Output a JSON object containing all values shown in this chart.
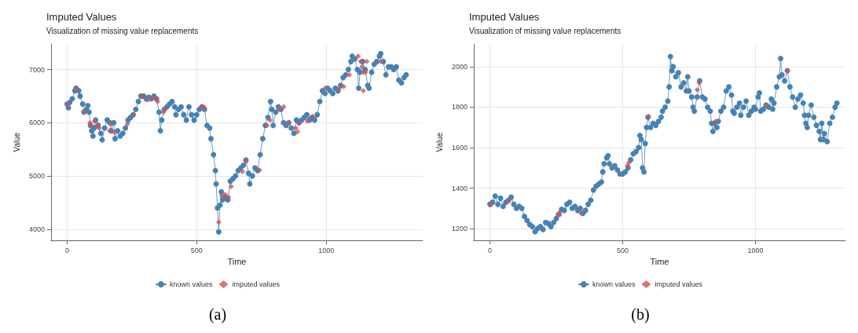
{
  "chart_data": [
    {
      "type": "line",
      "title": "Imputed Values",
      "subtitle": "Visualization of missing value replacements",
      "xlabel": "Time",
      "ylabel": "Value",
      "annotations": [
        "(a)"
      ],
      "xlim": [
        -62,
        1372
      ],
      "xticks": [
        0,
        500,
        1000
      ],
      "ylim": [
        3790,
        7480
      ],
      "yticks": [
        4000,
        5000,
        6000,
        7000
      ],
      "grid": true,
      "legend": "bottom",
      "series": [
        {
          "name": "known values",
          "type": "line",
          "marker": "circle",
          "color": "#4682b4",
          "x": [
            0,
            5,
            10,
            20,
            30,
            35,
            45,
            50,
            60,
            65,
            75,
            80,
            85,
            90,
            95,
            100,
            105,
            110,
            120,
            130,
            135,
            145,
            155,
            165,
            170,
            180,
            185,
            195,
            205,
            215,
            225,
            235,
            245,
            255,
            265,
            275,
            285,
            295,
            305,
            315,
            325,
            335,
            345,
            355,
            360,
            365,
            375,
            385,
            395,
            405,
            415,
            420,
            430,
            440,
            450,
            460,
            470,
            480,
            490,
            500,
            510,
            520,
            530,
            540,
            550,
            555,
            565,
            572,
            575,
            580,
            585,
            590,
            595,
            600,
            610,
            620,
            630,
            640,
            650,
            660,
            670,
            680,
            690,
            700,
            705,
            715,
            725,
            735,
            745,
            755,
            765,
            775,
            785,
            790,
            795,
            805,
            815,
            825,
            835,
            845,
            855,
            865,
            875,
            885,
            895,
            905,
            915,
            925,
            935,
            945,
            955,
            965,
            975,
            985,
            995,
            1005,
            1015,
            1025,
            1035,
            1045,
            1055,
            1065,
            1075,
            1085,
            1095,
            1100,
            1110,
            1120,
            1125,
            1130,
            1140,
            1150,
            1160,
            1165,
            1175,
            1185,
            1195,
            1205,
            1210,
            1220,
            1230,
            1240,
            1250,
            1260,
            1270,
            1280,
            1290,
            1300,
            1308
          ],
          "values": [
            6350,
            6280,
            6380,
            6450,
            6600,
            6650,
            6600,
            6500,
            6350,
            6200,
            6250,
            6320,
            6200,
            5950,
            5850,
            5750,
            5900,
            6050,
            5950,
            5800,
            5680,
            5900,
            6050,
            6000,
            5850,
            6000,
            5700,
            5850,
            5750,
            5800,
            5900,
            6050,
            6100,
            6150,
            6250,
            6400,
            6500,
            6500,
            6450,
            6480,
            6450,
            6500,
            6450,
            6200,
            5850,
            6050,
            6250,
            6300,
            6350,
            6400,
            6300,
            6150,
            6250,
            6300,
            6150,
            6050,
            6300,
            6150,
            6050,
            6150,
            6250,
            6300,
            6250,
            5950,
            5900,
            5700,
            5400,
            5100,
            4850,
            4400,
            3950,
            4450,
            4700,
            4550,
            4600,
            4550,
            4900,
            4950,
            5000,
            5100,
            5150,
            5200,
            5300,
            5050,
            4850,
            5000,
            5150,
            5100,
            5400,
            5700,
            5950,
            6100,
            6400,
            6250,
            5950,
            6200,
            6300,
            6250,
            6000,
            5950,
            6000,
            5900,
            5800,
            6050,
            6000,
            6050,
            6100,
            6150,
            6050,
            6100,
            6050,
            6150,
            6400,
            6600,
            6550,
            6650,
            6600,
            6550,
            6650,
            6600,
            6700,
            6850,
            6900,
            7000,
            7150,
            7250,
            7200,
            7000,
            6650,
            6950,
            7150,
            7000,
            6700,
            6650,
            6950,
            7100,
            7150,
            7250,
            7300,
            7150,
            6900,
            7050,
            7050,
            7000,
            7050,
            6800,
            6750,
            6850,
            6900
          ]
        },
        {
          "name": "imputed values",
          "type": "scatter",
          "marker": "diamond",
          "color": "#cd5555",
          "x": [
            2,
            35,
            65,
            88,
            93,
            106,
            117,
            124,
            164,
            169,
            183,
            233,
            256,
            289,
            311,
            332,
            344,
            349,
            372,
            377,
            521,
            529,
            585,
            597,
            610,
            623,
            633,
            677,
            690,
            742,
            771,
            783,
            818,
            836,
            854,
            882,
            889,
            895,
            927,
            948,
            996,
            1049,
            1067,
            1089,
            1123,
            1132,
            1138,
            1143,
            1143,
            1151,
            1156,
            1209
          ],
          "values": [
            6350,
            6630,
            6210,
            6000,
            5950,
            6030,
            5950,
            5900,
            5850,
            5970,
            5820,
            5980,
            6150,
            6500,
            6430,
            6480,
            6450,
            6400,
            6200,
            6250,
            6300,
            6290,
            4130,
            4620,
            4650,
            4600,
            4800,
            5080,
            5270,
            5110,
            5950,
            6050,
            6250,
            6300,
            6000,
            5900,
            5830,
            5990,
            6030,
            6120,
            6650,
            6630,
            6680,
            6900,
            7250,
            7150,
            7050,
            6950,
            6600,
            6950,
            7150,
            7150
          ]
        }
      ]
    },
    {
      "type": "line",
      "title": "Imputed Values",
      "subtitle": "Visualization of missing value replacements",
      "xlabel": "Time",
      "ylabel": "Value",
      "annotations": [
        "(b)"
      ],
      "xlim": [
        -61,
        1339
      ],
      "xticks": [
        0,
        500,
        1000
      ],
      "ylim": [
        1142,
        2112
      ],
      "yticks": [
        1200,
        1400,
        1600,
        1800,
        2000
      ],
      "grid": true,
      "legend": "bottom",
      "series": [
        {
          "name": "known values",
          "type": "line",
          "marker": "circle",
          "color": "#4682b4",
          "x": [
            0,
            10,
            20,
            30,
            40,
            50,
            60,
            70,
            80,
            90,
            100,
            110,
            120,
            130,
            140,
            150,
            160,
            170,
            180,
            190,
            200,
            210,
            220,
            230,
            240,
            250,
            260,
            270,
            280,
            290,
            300,
            310,
            320,
            330,
            340,
            350,
            360,
            370,
            380,
            390,
            400,
            410,
            420,
            425,
            430,
            440,
            445,
            450,
            460,
            470,
            480,
            490,
            500,
            510,
            520,
            530,
            540,
            550,
            560,
            565,
            570,
            575,
            580,
            585,
            590,
            595,
            605,
            615,
            625,
            635,
            645,
            650,
            660,
            670,
            675,
            680,
            685,
            690,
            700,
            710,
            720,
            730,
            740,
            745,
            750,
            760,
            765,
            770,
            780,
            790,
            800,
            810,
            820,
            830,
            835,
            840,
            845,
            855,
            860,
            870,
            880,
            890,
            900,
            910,
            915,
            920,
            930,
            940,
            945,
            955,
            965,
            975,
            985,
            995,
            1000,
            1010,
            1015,
            1020,
            1030,
            1040,
            1050,
            1060,
            1065,
            1070,
            1080,
            1090,
            1095,
            1100,
            1110,
            1120,
            1130,
            1140,
            1150,
            1160,
            1170,
            1180,
            1185,
            1190,
            1195,
            1200,
            1210,
            1220,
            1230,
            1240,
            1245,
            1250,
            1255,
            1260,
            1270,
            1280,
            1290,
            1300,
            1307
          ],
          "values": [
            1320,
            1330,
            1360,
            1320,
            1350,
            1310,
            1330,
            1340,
            1355,
            1320,
            1300,
            1310,
            1300,
            1260,
            1240,
            1220,
            1210,
            1185,
            1200,
            1210,
            1195,
            1230,
            1225,
            1210,
            1230,
            1250,
            1270,
            1295,
            1290,
            1320,
            1330,
            1300,
            1310,
            1290,
            1300,
            1275,
            1290,
            1320,
            1340,
            1390,
            1410,
            1420,
            1430,
            1480,
            1520,
            1550,
            1560,
            1520,
            1500,
            1510,
            1490,
            1470,
            1470,
            1480,
            1500,
            1540,
            1570,
            1580,
            1600,
            1660,
            1640,
            1500,
            1480,
            1620,
            1700,
            1750,
            1700,
            1720,
            1710,
            1730,
            1750,
            1780,
            1800,
            1830,
            1900,
            2050,
            1980,
            2000,
            1950,
            1970,
            1900,
            1920,
            1880,
            1950,
            1880,
            1850,
            1800,
            1780,
            1850,
            1930,
            1850,
            1840,
            1800,
            1780,
            1720,
            1680,
            1720,
            1700,
            1730,
            1780,
            1800,
            1880,
            1900,
            1860,
            1780,
            1770,
            1800,
            1820,
            1760,
            1800,
            1830,
            1760,
            1780,
            1800,
            1790,
            1850,
            1870,
            1780,
            1790,
            1810,
            1800,
            1840,
            1790,
            1820,
            1900,
            1950,
            2040,
            1960,
            1930,
            1980,
            1900,
            1850,
            1800,
            1840,
            1860,
            1820,
            1760,
            1720,
            1700,
            1760,
            1810,
            1750,
            1710,
            1680,
            1640,
            1720,
            1640,
            1670,
            1630,
            1720,
            1750,
            1800,
            1820
          ]
        },
        {
          "name": "imputed values",
          "type": "scatter",
          "marker": "diamond",
          "color": "#cd5555",
          "x": [
            4,
            68,
            256,
            262,
            343,
            518,
            523,
            597,
            781,
            788,
            850,
            1042,
            1121
          ],
          "values": [
            1318,
            1335,
            1270,
            1280,
            1277,
            1510,
            1525,
            1755,
            1885,
            1920,
            1730,
            1810,
            1980
          ]
        }
      ]
    }
  ]
}
